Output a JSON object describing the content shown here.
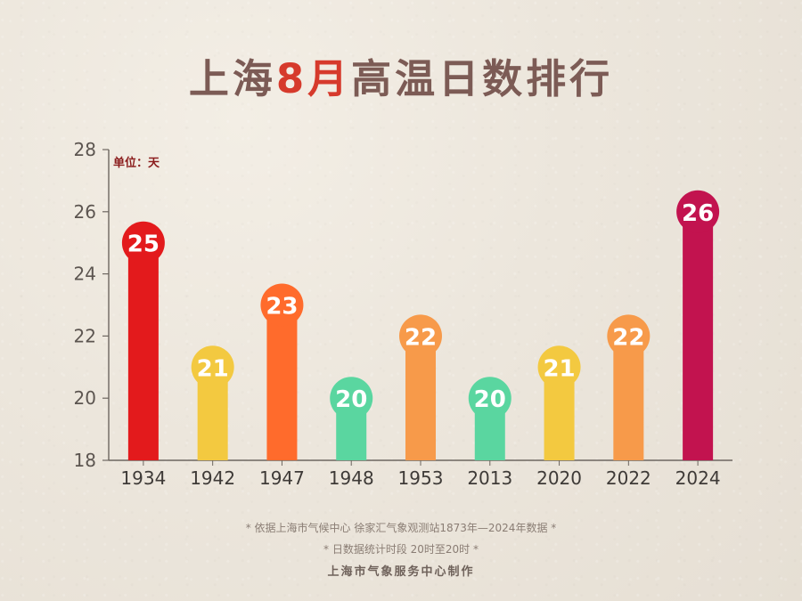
{
  "title": {
    "prefix": "上海",
    "highlight": "8月",
    "suffix": "高温日数排行"
  },
  "colors": {
    "title_text": "#7c5b55",
    "title_highlight": "#d63a2c",
    "axis": "#6d6660",
    "unit_label": "#8b1d1d",
    "footer_text": "#8a7d74"
  },
  "chart_data": {
    "type": "bar",
    "categories": [
      "1934",
      "1942",
      "1947",
      "1948",
      "1953",
      "2013",
      "2020",
      "2022",
      "2024"
    ],
    "values": [
      25,
      21,
      23,
      20,
      22,
      20,
      21,
      22,
      26
    ],
    "data_labels": [
      "25",
      "21",
      "23",
      "20",
      "22",
      "20",
      "21",
      "22",
      "26"
    ],
    "bar_colors": [
      "#e31a1c",
      "#f3c940",
      "#ff6b2c",
      "#5ad6a0",
      "#f79a4a",
      "#5ad6a0",
      "#f3c940",
      "#f79a4a",
      "#c2134f"
    ],
    "ylim": [
      18,
      28
    ],
    "yticks": [
      "18",
      "20",
      "22",
      "24",
      "26",
      "28"
    ],
    "unit_label": "单位：天",
    "grid": false,
    "xlabel": "",
    "ylabel": ""
  },
  "footer": {
    "source": "* 依据上海市气候中心 徐家汇气象观测站1873年—2024年数据 *",
    "period": "* 日数据统计时段 20时至20时 *",
    "credit": "上海市气象服务中心制作"
  }
}
